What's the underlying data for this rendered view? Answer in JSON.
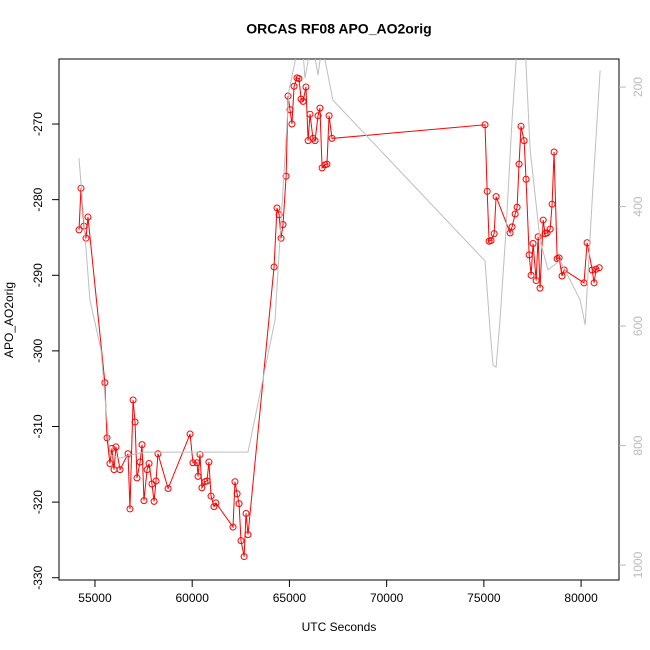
{
  "chart_data": {
    "type": "line",
    "title": "ORCAS RF08 APO_AO2orig",
    "x_label": "UTC Seconds",
    "y_label": "APO_AO2orig",
    "xlim": [
      53150,
      81950
    ],
    "xticks": [
      55000,
      60000,
      65000,
      70000,
      75000,
      80000
    ],
    "ylim": [
      -330.3,
      -261.4
    ],
    "yticks": [
      -330,
      -320,
      -310,
      -300,
      -290,
      -280,
      -270
    ],
    "y2lim": [
      1025,
      153
    ],
    "y2ticks": [
      200,
      400,
      600,
      800,
      1000
    ],
    "series": [
      {
        "color": "#ff0000",
        "markers": true,
        "x": [
          54180,
          54280,
          54430,
          54540,
          54640,
          55510,
          55620,
          55770,
          55870,
          55980,
          56080,
          56290,
          56700,
          56800,
          56960,
          57060,
          57160,
          57320,
          57420,
          57520,
          57680,
          57780,
          57930,
          58040,
          58140,
          58240,
          58760,
          59890,
          60040,
          60250,
          60300,
          60400,
          60500,
          60660,
          60760,
          60860,
          60970,
          61120,
          61220,
          62100,
          62200,
          62310,
          62410,
          62510,
          62670,
          62770,
          62870,
          64210,
          64360,
          64470,
          64570,
          64670,
          64830,
          64930,
          65030,
          65130,
          65240,
          65390,
          65490,
          65600,
          65700,
          65850,
          65960,
          66060,
          66210,
          66320,
          66470,
          66570,
          66680,
          66830,
          66930,
          67040,
          67190,
          75060,
          75170,
          75270,
          75370,
          75530,
          75630,
          76350,
          76450,
          76610,
          76710,
          76810,
          76910,
          77070,
          77170,
          77330,
          77430,
          77530,
          77690,
          77790,
          77890,
          78050,
          78150,
          78250,
          78410,
          78510,
          78610,
          78770,
          78870,
          79020,
          79130,
          80150,
          80310,
          80570,
          80670,
          80770,
          80930
        ],
        "values": [
          -284.0,
          -278.5,
          -283.5,
          -285.1,
          -282.3,
          -304.2,
          -311.5,
          -314.9,
          -312.9,
          -315.7,
          -312.7,
          -315.7,
          -313.6,
          -320.9,
          -306.5,
          -309.4,
          -316.8,
          -314.7,
          -312.4,
          -319.8,
          -315.7,
          -314.9,
          -317.6,
          -319.9,
          -317.2,
          -313.6,
          -318.2,
          -311.0,
          -314.8,
          -314.8,
          -316.6,
          -313.7,
          -318.1,
          -317.3,
          -317.2,
          -314.7,
          -319.2,
          -320.6,
          -320.1,
          -323.3,
          -317.3,
          -318.9,
          -320.2,
          -325.1,
          -327.2,
          -321.5,
          -324.3,
          -288.9,
          -281.1,
          -282.0,
          -285.1,
          -283.3,
          -276.9,
          -266.3,
          -268.1,
          -270.0,
          -265.0,
          -263.9,
          -264.0,
          -266.7,
          -267.0,
          -265.1,
          -272.2,
          -268.7,
          -271.9,
          -272.2,
          -268.9,
          -267.9,
          -275.8,
          -275.4,
          -275.3,
          -268.9,
          -271.9,
          -270.1,
          -278.9,
          -285.5,
          -285.4,
          -284.5,
          -279.6,
          -284.4,
          -283.6,
          -281.9,
          -281.0,
          -275.3,
          -270.3,
          -272.2,
          -277.3,
          -287.3,
          -290.0,
          -285.8,
          -290.7,
          -284.9,
          -291.7,
          -282.7,
          -284.5,
          -284.4,
          -283.9,
          -280.6,
          -273.7,
          -287.8,
          -287.7,
          -290.1,
          -289.3,
          -291.0,
          -285.7,
          -289.3,
          -291.0,
          -289.2,
          -289.0
        ]
      },
      {
        "color": "#bebebe",
        "axis": "y2",
        "markers": false,
        "x": [
          54180,
          54740,
          55310,
          55770,
          56290,
          56800,
          57570,
          59370,
          62870,
          64260,
          64980,
          65340,
          65650,
          65800,
          66160,
          66470,
          66680,
          67240,
          75060,
          75320,
          75470,
          75630,
          75830,
          76140,
          76450,
          76710,
          77120,
          77380,
          77890,
          78300,
          78920,
          79950,
          80210,
          80570,
          80980
        ],
        "values": [
          319,
          556,
          640,
          816,
          821,
          816,
          811,
          811,
          811,
          590,
          205,
          150,
          120,
          185,
          120,
          180,
          130,
          222,
          491,
          607,
          665,
          669,
          590,
          439,
          255,
          130,
          130,
          305,
          456,
          506,
          490,
          556,
          598,
          389,
          172
        ]
      }
    ]
  }
}
